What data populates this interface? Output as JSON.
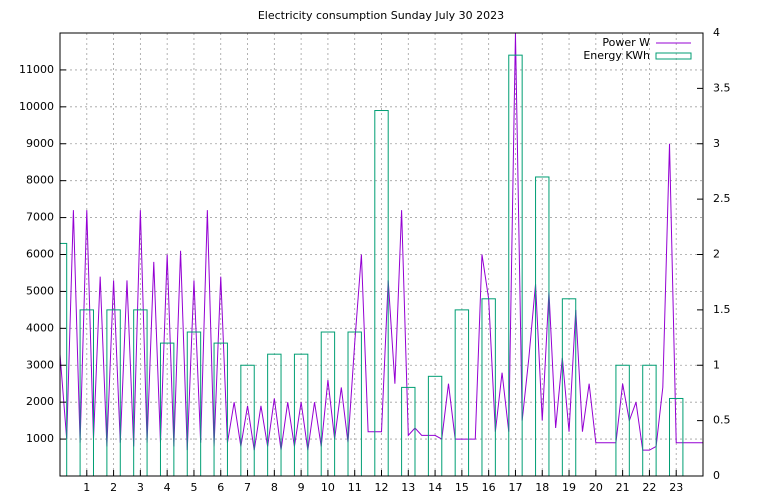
{
  "chart_data": {
    "type": "line",
    "title": "Electricity consumption Sunday July 30 2023",
    "xlim": [
      0,
      24
    ],
    "xticks": [
      1,
      2,
      3,
      4,
      5,
      6,
      7,
      8,
      9,
      10,
      11,
      12,
      13,
      14,
      15,
      16,
      17,
      18,
      19,
      20,
      21,
      22,
      23
    ],
    "ylim": [
      0,
      12000
    ],
    "yticks": [
      1000,
      2000,
      3000,
      4000,
      5000,
      6000,
      7000,
      8000,
      9000,
      10000,
      11000
    ],
    "y2lim": [
      0,
      4
    ],
    "y2ticks": [
      0,
      0.5,
      1,
      1.5,
      2,
      2.5,
      3,
      3.5,
      4
    ],
    "grid": true,
    "legend": "top-right",
    "series": [
      {
        "name": "Power W",
        "color": "#9400d3",
        "type": "line",
        "x": [
          0,
          0.25,
          0.5,
          0.75,
          1,
          1.25,
          1.5,
          1.75,
          2,
          2.25,
          2.5,
          2.75,
          3,
          3.25,
          3.5,
          3.75,
          4,
          4.25,
          4.5,
          4.75,
          5,
          5.25,
          5.5,
          5.75,
          6,
          6.25,
          6.5,
          6.75,
          7,
          7.25,
          7.5,
          7.75,
          8,
          8.25,
          8.5,
          8.75,
          9,
          9.25,
          9.5,
          9.75,
          10,
          10.25,
          10.5,
          10.75,
          11,
          11.25,
          11.5,
          11.75,
          12,
          12.25,
          12.5,
          12.75,
          13,
          13.25,
          13.5,
          13.75,
          14,
          14.25,
          14.5,
          14.75,
          15,
          15.25,
          15.5,
          15.75,
          16,
          16.25,
          16.5,
          16.75,
          17,
          17.25,
          17.5,
          17.75,
          18,
          18.25,
          18.5,
          18.75,
          19,
          19.25,
          19.5,
          19.75,
          20,
          20.25,
          20.5,
          20.75,
          21,
          21.25,
          21.5,
          21.75,
          22,
          22.25,
          22.5,
          22.75,
          23,
          23.25,
          23.5,
          23.75,
          24
        ],
        "values": [
          3300,
          1000,
          7200,
          900,
          7200,
          1000,
          5400,
          800,
          5300,
          900,
          5300,
          800,
          7200,
          900,
          5800,
          900,
          6000,
          800,
          6100,
          700,
          5300,
          900,
          7200,
          800,
          5400,
          900,
          2000,
          800,
          1900,
          700,
          1900,
          800,
          2100,
          700,
          2000,
          800,
          2000,
          700,
          2000,
          800,
          2600,
          1000,
          2400,
          900,
          3600,
          6000,
          1200,
          1200,
          1200,
          5300,
          2500,
          7200,
          1100,
          1300,
          1100,
          1100,
          1100,
          1000,
          2500,
          1000,
          1000,
          1000,
          1000,
          6000,
          4800,
          1200,
          2800,
          1200,
          12000,
          1500,
          3200,
          5200,
          1500,
          5000,
          1300,
          3200,
          1200,
          4500,
          1200,
          2500,
          900,
          900,
          900,
          900,
          2500,
          1500,
          2000,
          700,
          700,
          800,
          2400,
          9000,
          900,
          900,
          900,
          900,
          900
        ]
      },
      {
        "name": "Energy KWh",
        "color": "#009e73",
        "type": "boxes",
        "axis": "y2",
        "x": [
          0,
          1,
          2,
          3,
          4,
          5,
          6,
          7,
          8,
          9,
          10,
          11,
          12,
          13,
          14,
          15,
          16,
          17,
          18,
          19,
          20,
          21,
          22,
          23
        ],
        "values": [
          2.1,
          1.5,
          1.5,
          1.5,
          1.2,
          1.3,
          1.2,
          1.0,
          1.1,
          1.1,
          1.3,
          1.3,
          3.3,
          0.8,
          0.9,
          1.5,
          1.6,
          3.8,
          2.7,
          1.6,
          0,
          1.0,
          1.0,
          0.7
        ]
      }
    ]
  }
}
